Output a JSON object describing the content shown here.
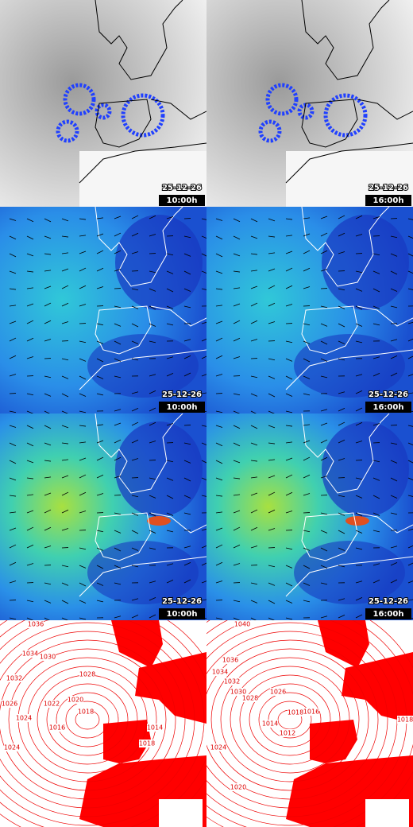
{
  "panels": [
    {
      "date": "25-12-26",
      "time": "10:00h"
    },
    {
      "date": "25-12-26",
      "time": "16:00h"
    },
    {
      "date": "25-12-26",
      "time": "10:00h"
    },
    {
      "date": "25-12-26",
      "time": "16:00h"
    },
    {
      "date": "25-12-26",
      "time": "10:00h"
    },
    {
      "date": "25-12-26",
      "time": "16:00h"
    }
  ],
  "isobars": {
    "left": [
      "1036",
      "1034",
      "1032",
      "1030",
      "1028",
      "1026",
      "1024",
      "1022",
      "1020",
      "1018",
      "1016",
      "1018",
      "1014",
      "1024"
    ],
    "right": [
      "1040",
      "1036",
      "1034",
      "1032",
      "1030",
      "1028",
      "1026",
      "1018",
      "1016",
      "1014",
      "1012",
      "1024",
      "1020",
      "1018"
    ]
  }
}
